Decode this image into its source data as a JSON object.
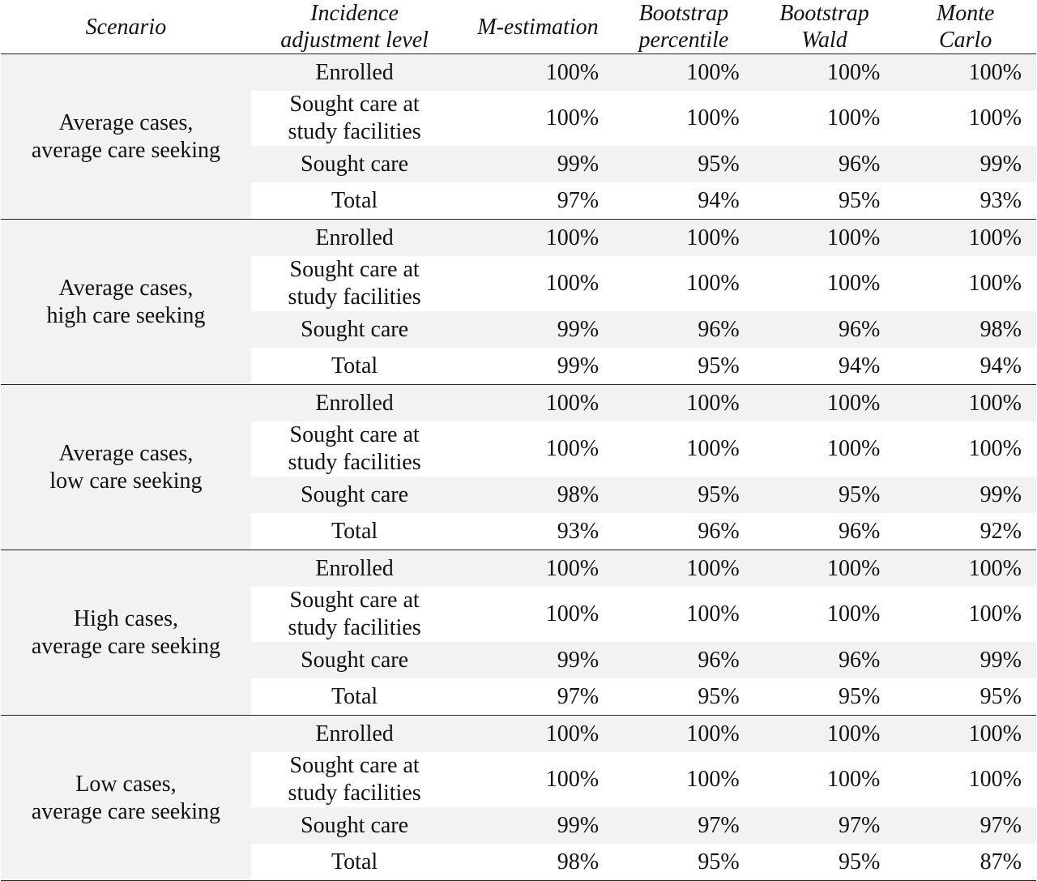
{
  "headers": {
    "scenario": "Scenario",
    "level_line1": "Incidence",
    "level_line2": "adjustment level",
    "m_estimation": "M-estimation",
    "bootstrap_percentile_line1": "Bootstrap",
    "bootstrap_percentile_line2": "percentile",
    "bootstrap_wald_line1": "Bootstrap",
    "bootstrap_wald_line2": "Wald",
    "monte_carlo_line1": "Monte",
    "monte_carlo_line2": "Carlo"
  },
  "levels": {
    "enrolled": "Enrolled",
    "sought_facilities_line1": "Sought care at",
    "sought_facilities_line2": "study facilities",
    "sought_care": "Sought care",
    "total": "Total"
  },
  "groups": [
    {
      "scenario_line1": "Average cases,",
      "scenario_line2": "average care seeking",
      "rows": [
        [
          "100%",
          "100%",
          "100%",
          "100%"
        ],
        [
          "100%",
          "100%",
          "100%",
          "100%"
        ],
        [
          "99%",
          "95%",
          "96%",
          "99%"
        ],
        [
          "97%",
          "94%",
          "95%",
          "93%"
        ]
      ]
    },
    {
      "scenario_line1": "Average cases,",
      "scenario_line2": "high care seeking",
      "rows": [
        [
          "100%",
          "100%",
          "100%",
          "100%"
        ],
        [
          "100%",
          "100%",
          "100%",
          "100%"
        ],
        [
          "99%",
          "96%",
          "96%",
          "98%"
        ],
        [
          "99%",
          "95%",
          "94%",
          "94%"
        ]
      ]
    },
    {
      "scenario_line1": "Average cases,",
      "scenario_line2": "low care seeking",
      "rows": [
        [
          "100%",
          "100%",
          "100%",
          "100%"
        ],
        [
          "100%",
          "100%",
          "100%",
          "100%"
        ],
        [
          "98%",
          "95%",
          "95%",
          "99%"
        ],
        [
          "93%",
          "96%",
          "96%",
          "92%"
        ]
      ]
    },
    {
      "scenario_line1": "High cases,",
      "scenario_line2": "average care seeking",
      "rows": [
        [
          "100%",
          "100%",
          "100%",
          "100%"
        ],
        [
          "100%",
          "100%",
          "100%",
          "100%"
        ],
        [
          "99%",
          "96%",
          "96%",
          "99%"
        ],
        [
          "97%",
          "95%",
          "95%",
          "95%"
        ]
      ]
    },
    {
      "scenario_line1": "Low cases,",
      "scenario_line2": "average care seeking",
      "rows": [
        [
          "100%",
          "100%",
          "100%",
          "100%"
        ],
        [
          "100%",
          "100%",
          "100%",
          "100%"
        ],
        [
          "99%",
          "97%",
          "97%",
          "97%"
        ],
        [
          "98%",
          "95%",
          "95%",
          "87%"
        ]
      ]
    }
  ]
}
